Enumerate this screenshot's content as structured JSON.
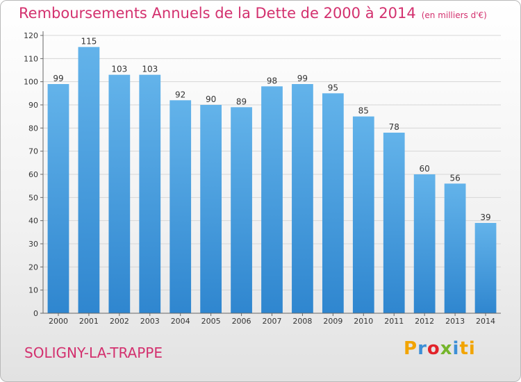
{
  "header": {
    "title": "Remboursements Annuels de la Dette de 2000 à 2014",
    "unit": "(en milliers d'€)"
  },
  "footer": {
    "commune": "SOLIGNY-LA-TRAPPE",
    "logo": "Proxiti",
    "logo_letters": [
      "P",
      "r",
      "o",
      "x",
      "i",
      "ti"
    ]
  },
  "colors": {
    "title": "#d3306e",
    "bar_light": "#63b3ea",
    "bar_dark": "#2f86cf",
    "axis": "#666666",
    "grid": "#d6d6d6"
  },
  "chart_data": {
    "type": "bar",
    "title": "Remboursements Annuels de la Dette de 2000 à 2014",
    "xlabel": "",
    "ylabel": "",
    "categories": [
      "2000",
      "2001",
      "2002",
      "2003",
      "2004",
      "2005",
      "2006",
      "2007",
      "2008",
      "2009",
      "2010",
      "2011",
      "2012",
      "2013",
      "2014"
    ],
    "values": [
      99,
      115,
      103,
      103,
      92,
      90,
      89,
      98,
      99,
      95,
      85,
      78,
      60,
      56,
      39
    ],
    "ylim": [
      0,
      120
    ],
    "yticks": [
      0,
      10,
      20,
      30,
      40,
      50,
      60,
      70,
      80,
      90,
      100,
      110,
      120
    ],
    "grid": true
  }
}
